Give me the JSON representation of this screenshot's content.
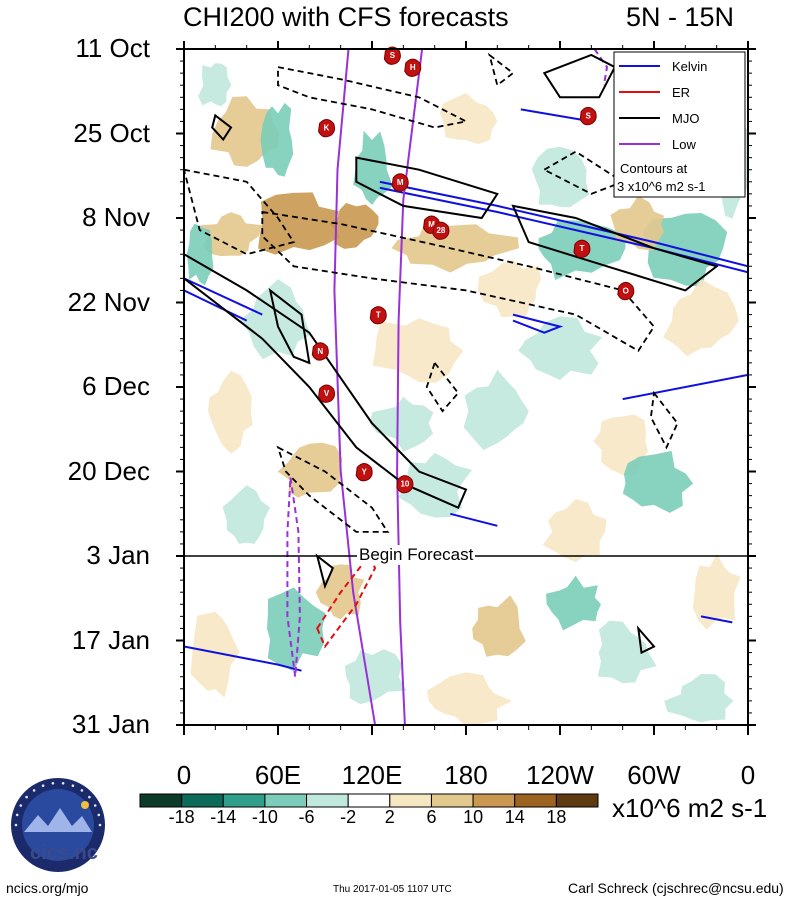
{
  "header": {
    "title": "CHI200 with CFS forecasts",
    "region": "5N - 15N"
  },
  "chart_data": {
    "type": "heatmap",
    "title": "CHI200 with CFS forecasts",
    "region": "5N - 15N",
    "y_tick_labels": [
      "11 Oct",
      "25 Oct",
      "8 Nov",
      "22 Nov",
      "6 Dec",
      "20 Dec",
      "3 Jan",
      "17 Jan",
      "31 Jan"
    ],
    "x_tick_labels": [
      "0",
      "60E",
      "120E",
      "180",
      "120W",
      "60W",
      "0"
    ],
    "xlim_deg_east": [
      0,
      360
    ],
    "ylim_days_since_11Oct": [
      0,
      112
    ],
    "forecast_start_label": "Begin Forecast",
    "forecast_start_day": 84,
    "colorbar": {
      "levels": [
        -18,
        -14,
        -10,
        -6,
        -2,
        2,
        6,
        10,
        14,
        18
      ],
      "tick_labels": [
        "-18",
        "-14",
        "-10",
        "-6",
        "-2",
        "2",
        "6",
        "10",
        "14",
        "18"
      ],
      "colors": [
        "#0d3b2a",
        "#0b6b58",
        "#2f9e8a",
        "#7bcdb9",
        "#c1e8dd",
        "#ffffff",
        "#f6e7c3",
        "#e3c88d",
        "#c9984f",
        "#9c6420",
        "#5e3a11"
      ],
      "units": "x10^6 m2 s-1"
    },
    "legend": {
      "placement": "top-right",
      "entries": [
        {
          "label": "Kelvin",
          "color": "#1010e0",
          "dash": "solid"
        },
        {
          "label": "ER",
          "color": "#e01010",
          "dash": "solid"
        },
        {
          "label": "MJO",
          "color": "#000000",
          "dash": "solid"
        },
        {
          "label": "Low",
          "color": "#9a30d8",
          "dash": "solid"
        }
      ],
      "note_line1": "Contours at",
      "note_line2": "3 x10^6 m2 s-1"
    },
    "storm_markers": [
      {
        "letter": "S",
        "lon": 133,
        "day": 1
      },
      {
        "letter": "H",
        "lon": 146,
        "day": 3
      },
      {
        "letter": "K",
        "lon": 91,
        "day": 13
      },
      {
        "letter": "S",
        "lon": 258,
        "day": 11
      },
      {
        "letter": "M",
        "lon": 138,
        "day": 22
      },
      {
        "letter": "M",
        "lon": 158,
        "day": 29
      },
      {
        "letter": "28",
        "lon": 164,
        "day": 30
      },
      {
        "letter": "T",
        "lon": 254,
        "day": 33
      },
      {
        "letter": "O",
        "lon": 282,
        "day": 40
      },
      {
        "letter": "T",
        "lon": 124,
        "day": 44
      },
      {
        "letter": "N",
        "lon": 87,
        "day": 50
      },
      {
        "letter": "V",
        "lon": 91,
        "day": 57
      },
      {
        "letter": "Y",
        "lon": 115,
        "day": 70
      },
      {
        "letter": "10",
        "lon": 141,
        "day": 72
      }
    ]
  },
  "footer": {
    "left": "ncics.org/mjo",
    "middle": "Thu 2017-01-05 1107 UTC",
    "right": "Carl Schreck (cjschrec@ncsu.edu)",
    "logo_text": "cics.nc",
    "logo_ring_text": "Cooperative Institute for Climate and Satellites"
  }
}
